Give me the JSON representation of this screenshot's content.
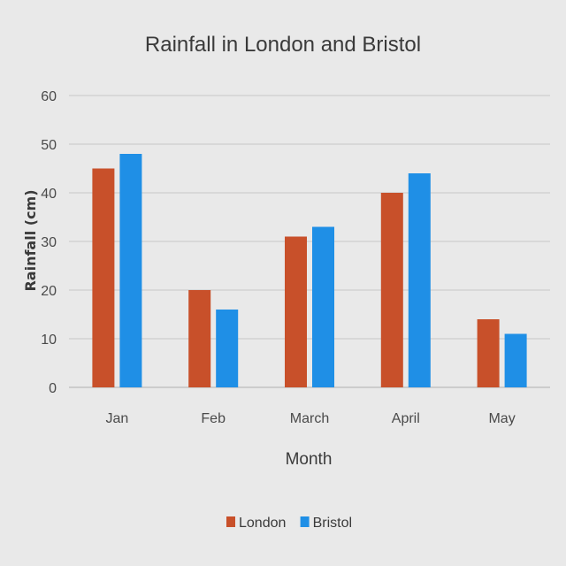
{
  "chart_data": {
    "type": "bar",
    "title": "Rainfall in London and Bristol",
    "xlabel": "Month",
    "ylabel": "Rainfall (cm)",
    "categories": [
      "Jan",
      "Feb",
      "March",
      "April",
      "May"
    ],
    "series": [
      {
        "name": "London",
        "values": [
          45,
          20,
          31,
          40,
          14
        ],
        "color": "#c8502a"
      },
      {
        "name": "Bristol",
        "values": [
          48,
          16,
          33,
          44,
          11
        ],
        "color": "#1f8fe6"
      }
    ],
    "ylim": [
      0,
      60
    ],
    "yticks": [
      0,
      10,
      20,
      30,
      40,
      50,
      60
    ],
    "grid": true,
    "legend_position": "bottom"
  }
}
